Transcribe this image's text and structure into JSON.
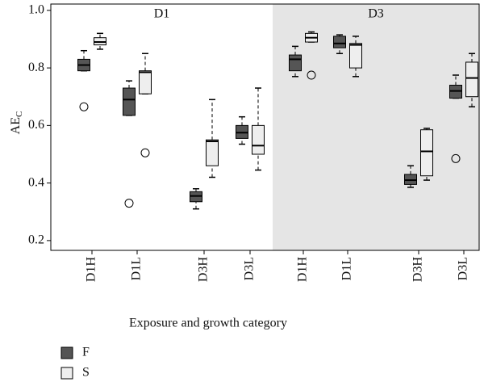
{
  "chart_data": {
    "type": "box",
    "ylabel": "AE",
    "ylabel_subscript": "C",
    "xlabel": "Exposure and growth category",
    "ylim": [
      0.166,
      1.022
    ],
    "yticks": [
      0.2,
      0.4,
      0.6,
      0.8,
      {
        "value": 1,
        "label": "1.0"
      }
    ],
    "legend": "bottom-left",
    "series": [
      {
        "name": "F",
        "color": "#555555"
      },
      {
        "name": "S",
        "color": "#eeeeee"
      }
    ],
    "panels": [
      {
        "title": "D1",
        "background": "#ffffff",
        "categories": [
          "D1H",
          "D1L",
          "D3H",
          "D3L"
        ],
        "data": [
          [
            {
              "min": 0.79,
              "q1": 0.79,
              "median": 0.81,
              "q3": 0.83,
              "max": 0.86,
              "outliers": [
                0.665
              ]
            },
            {
              "min": 0.635,
              "q1": 0.635,
              "median": 0.69,
              "q3": 0.73,
              "max": 0.755,
              "outliers": [
                0.33
              ]
            },
            {
              "min": 0.31,
              "q1": 0.335,
              "median": 0.355,
              "q3": 0.37,
              "max": 0.38,
              "outliers": []
            },
            {
              "min": 0.535,
              "q1": 0.555,
              "median": 0.575,
              "q3": 0.6,
              "max": 0.63,
              "outliers": []
            }
          ],
          [
            {
              "min": 0.865,
              "q1": 0.88,
              "median": 0.89,
              "q3": 0.905,
              "max": 0.92,
              "outliers": []
            },
            {
              "min": 0.71,
              "q1": 0.71,
              "median": 0.785,
              "q3": 0.79,
              "max": 0.85,
              "outliers": [
                0.505
              ]
            },
            {
              "min": 0.42,
              "q1": 0.46,
              "median": 0.545,
              "q3": 0.55,
              "max": 0.69,
              "outliers": []
            },
            {
              "min": 0.445,
              "q1": 0.5,
              "median": 0.53,
              "q3": 0.6,
              "max": 0.73,
              "outliers": []
            }
          ]
        ]
      },
      {
        "title": "D3",
        "background": "#e5e5e5",
        "categories": [
          "D1H",
          "D1L",
          "D3H",
          "D3L"
        ],
        "data": [
          [
            {
              "min": 0.77,
              "q1": 0.79,
              "median": 0.83,
              "q3": 0.845,
              "max": 0.875,
              "outliers": []
            },
            {
              "min": 0.85,
              "q1": 0.87,
              "median": 0.885,
              "q3": 0.91,
              "max": 0.915,
              "outliers": []
            },
            {
              "min": 0.385,
              "q1": 0.395,
              "median": 0.41,
              "q3": 0.43,
              "max": 0.46,
              "outliers": []
            },
            {
              "min": 0.695,
              "q1": 0.695,
              "median": 0.72,
              "q3": 0.74,
              "max": 0.775,
              "outliers": [
                0.485
              ]
            }
          ],
          [
            {
              "min": 0.89,
              "q1": 0.89,
              "median": 0.905,
              "q3": 0.92,
              "max": 0.925,
              "outliers": [
                0.775
              ]
            },
            {
              "min": 0.77,
              "q1": 0.8,
              "median": 0.88,
              "q3": 0.885,
              "max": 0.91,
              "outliers": []
            },
            {
              "min": 0.41,
              "q1": 0.425,
              "median": 0.51,
              "q3": 0.585,
              "max": 0.59,
              "outliers": []
            },
            {
              "min": 0.665,
              "q1": 0.7,
              "median": 0.765,
              "q3": 0.82,
              "max": 0.85,
              "outliers": []
            }
          ]
        ]
      }
    ]
  }
}
